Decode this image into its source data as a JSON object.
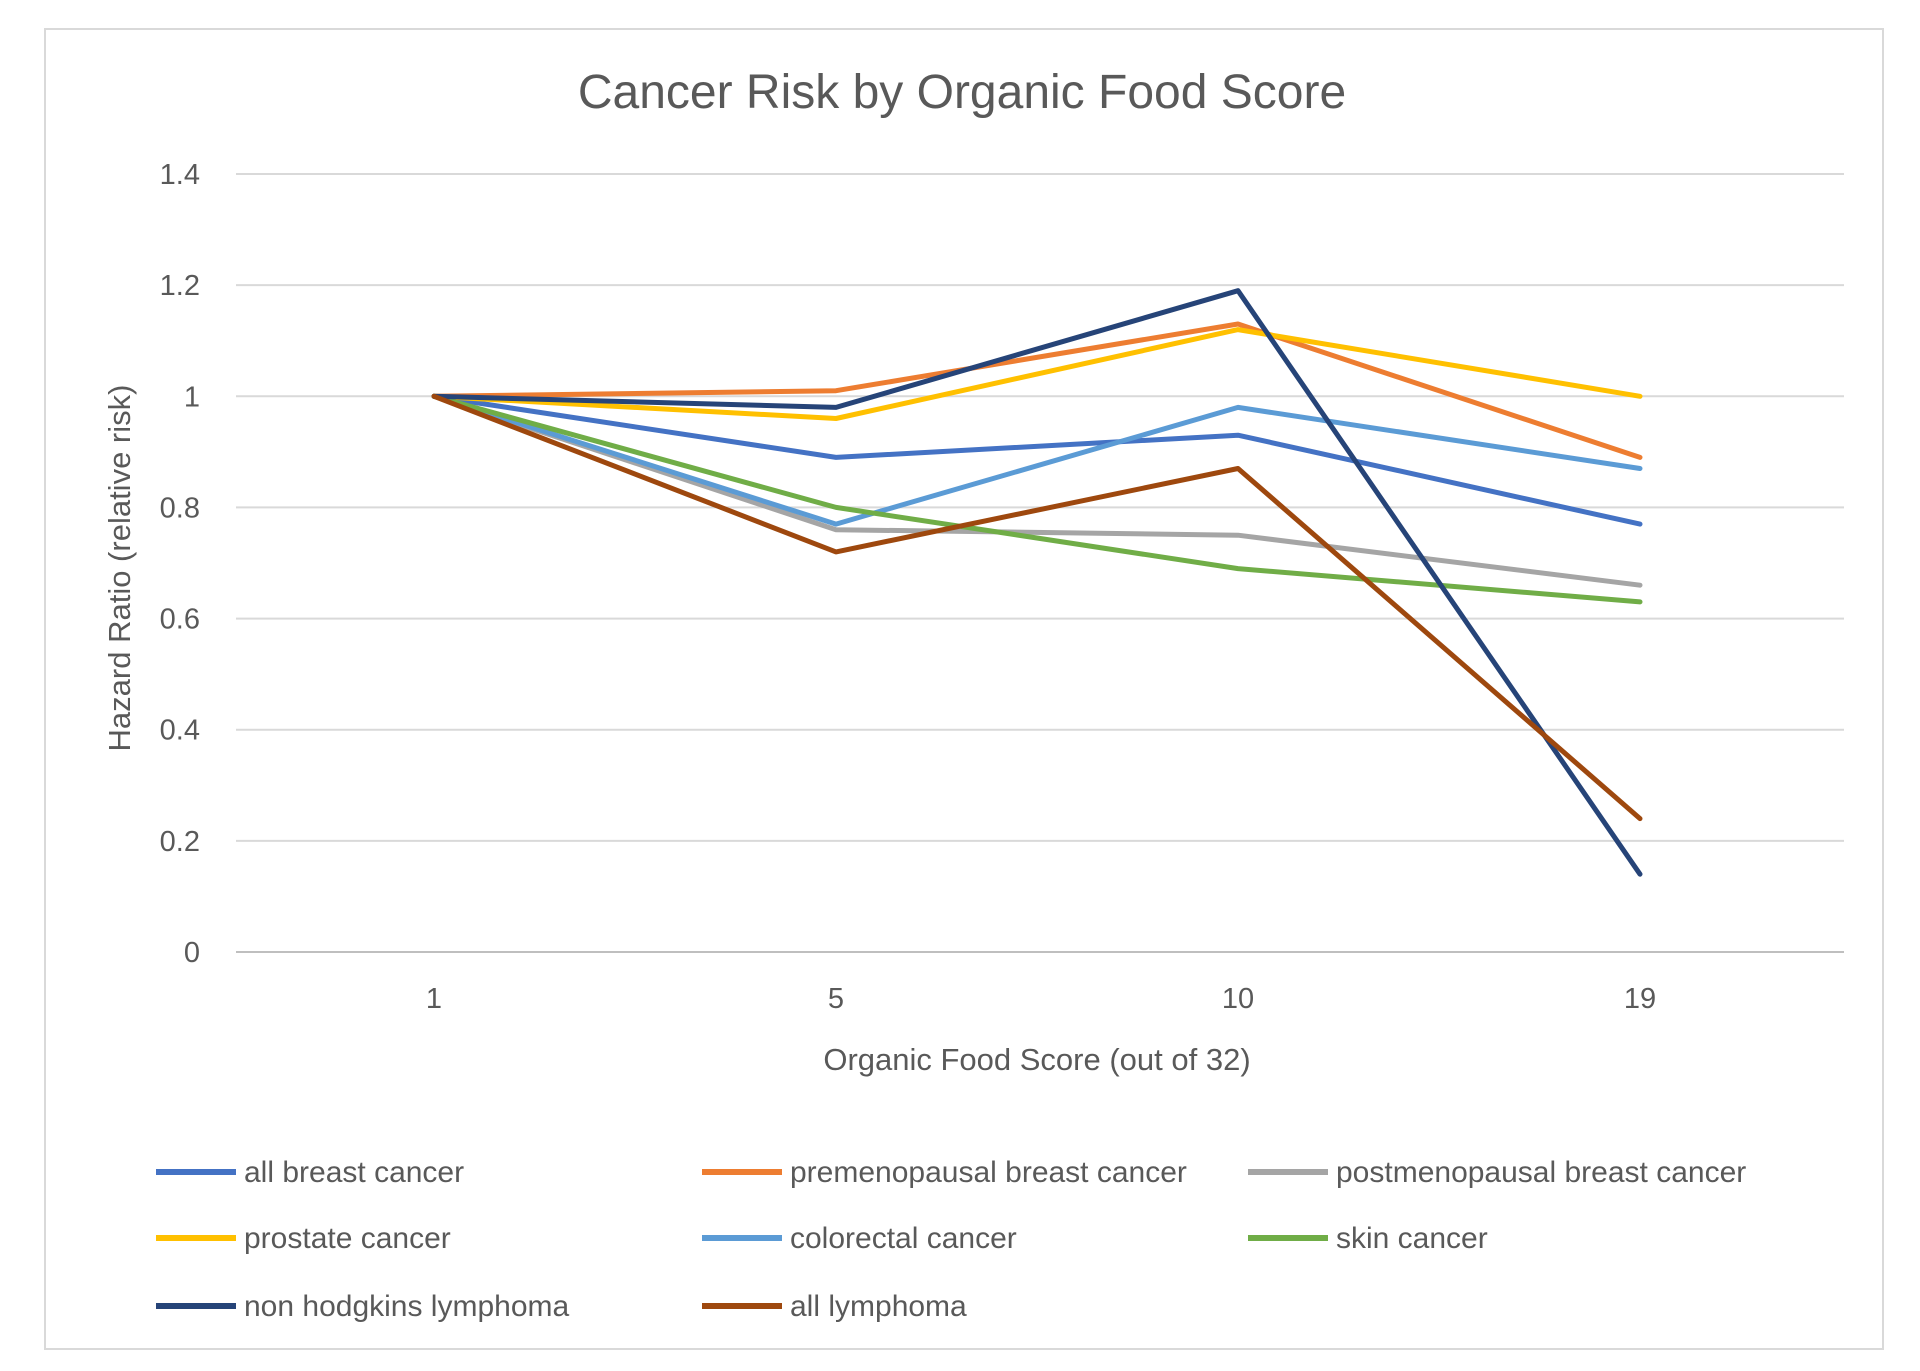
{
  "chart_data": {
    "type": "line",
    "title": "Cancer Risk by Organic Food Score",
    "xlabel": "Organic Food Score (out of 32)",
    "ylabel": "Hazard Ratio (relative risk)",
    "categories": [
      "1",
      "5",
      "10",
      "19"
    ],
    "ylim": [
      0,
      1.4
    ],
    "yticks": [
      0,
      0.2,
      0.4,
      0.6,
      0.8,
      1,
      1.2,
      1.4
    ],
    "ytick_labels": [
      "0",
      "0.2",
      "0.4",
      "0.6",
      "0.8",
      "1",
      "1.2",
      "1.4"
    ],
    "grid": true,
    "legend_position": "bottom",
    "series": [
      {
        "name": "all breast cancer",
        "color": "#4472c4",
        "values": [
          1,
          0.89,
          0.93,
          0.77
        ]
      },
      {
        "name": "premenopausal breast cancer",
        "color": "#ed7d31",
        "values": [
          1,
          1.01,
          1.13,
          0.89
        ]
      },
      {
        "name": "postmenopausal breast cancer",
        "color": "#a5a5a5",
        "values": [
          1,
          0.76,
          0.75,
          0.66
        ]
      },
      {
        "name": "prostate cancer",
        "color": "#ffc000",
        "values": [
          1,
          0.96,
          1.12,
          1.0
        ]
      },
      {
        "name": "colorectal cancer",
        "color": "#5b9bd5",
        "values": [
          1,
          0.77,
          0.98,
          0.87
        ]
      },
      {
        "name": "skin cancer",
        "color": "#70ad47",
        "values": [
          1,
          0.8,
          0.69,
          0.63
        ]
      },
      {
        "name": "non hodgkins lymphoma",
        "color": "#264478",
        "values": [
          1,
          0.98,
          1.19,
          0.14
        ]
      },
      {
        "name": "all lymphoma",
        "color": "#9e480e",
        "values": [
          1,
          0.72,
          0.87,
          0.24
        ]
      }
    ]
  }
}
